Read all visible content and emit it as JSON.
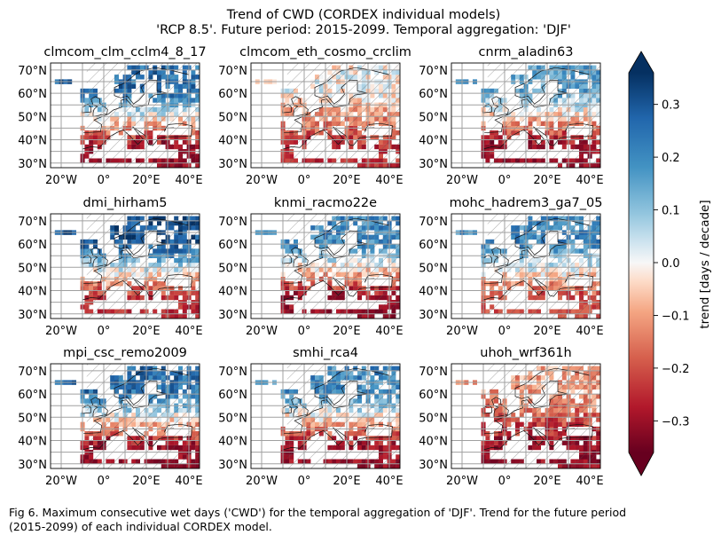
{
  "figure": {
    "title_line1": "Trend of CWD (CORDEX individual models)",
    "title_line2": "'RCP 8.5'. Future period: 2015-2099. Temporal aggregation: 'DJF'",
    "caption_line1": "Fig 6. Maximum consecutive wet days ('CWD') for the temporal aggregation of 'DJF'. Trend for the future period",
    "caption_line2": "(2015-2099) of each individual CORDEX model."
  },
  "chart_data": {
    "type": "heatmap",
    "title": "Trend of CWD (CORDEX individual models)",
    "subtitle": "'RCP 8.5'. Future period: 2015-2099. Temporal aggregation: 'DJF'",
    "panels": [
      {
        "name": "clmcom_clm_cclm4_8_17",
        "north_trend": 0.25,
        "south_trend": -0.3
      },
      {
        "name": "clmcom_eth_cosmo_crclim",
        "north_trend": 0.0,
        "south_trend": -0.25
      },
      {
        "name": "cnrm_aladin63",
        "north_trend": 0.15,
        "south_trend": -0.3
      },
      {
        "name": "dmi_hirham5",
        "north_trend": 0.3,
        "south_trend": -0.25
      },
      {
        "name": "knmi_racmo22e",
        "north_trend": 0.2,
        "south_trend": -0.3
      },
      {
        "name": "mohc_hadrem3_ga7_05",
        "north_trend": 0.2,
        "south_trend": -0.2
      },
      {
        "name": "mpi_csc_remo2009",
        "north_trend": 0.25,
        "south_trend": -0.3
      },
      {
        "name": "smhi_rca4",
        "north_trend": 0.2,
        "south_trend": -0.3
      },
      {
        "name": "uhoh_wrf361h",
        "north_trend": -0.1,
        "south_trend": -0.3
      }
    ],
    "x_ticks": [
      "20°W",
      "0°",
      "20°E",
      "40°E"
    ],
    "y_ticks": [
      "30°N",
      "40°N",
      "50°N",
      "60°N",
      "70°N"
    ],
    "xlim": [
      -25,
      45
    ],
    "ylim": [
      28,
      73
    ],
    "colorbar": {
      "label": "trend [days / decade]",
      "ticks": [
        "0.3",
        "0.2",
        "0.1",
        "0.0",
        "−0.1",
        "−0.2",
        "−0.3"
      ],
      "tick_values": [
        0.3,
        0.2,
        0.1,
        0.0,
        -0.1,
        -0.2,
        -0.3
      ],
      "range": [
        -0.36,
        0.36
      ],
      "colormap": "RdBu",
      "extend": "both"
    },
    "hatching": "diagonal",
    "grid": true
  },
  "colors": {
    "blue_dark": "#053061",
    "blue": "#2166ac",
    "blue_light": "#92c5de",
    "neutral": "#f7f7f7",
    "red_light": "#f4a582",
    "red": "#b2182b",
    "red_dark": "#67001f"
  }
}
